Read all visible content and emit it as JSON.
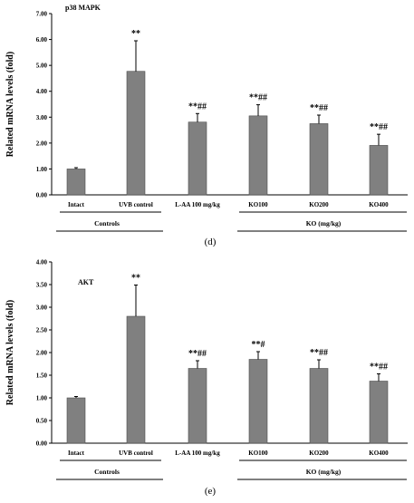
{
  "chart_data": [
    {
      "type": "bar",
      "title": "p38 MAPK",
      "ylabel": "Related mRNA levels (fold)",
      "ylim": [
        0,
        7
      ],
      "yticks": [
        "0.00",
        "1.00",
        "2.00",
        "3.00",
        "4.00",
        "5.00",
        "6.00",
        "7.00"
      ],
      "categories": [
        "Intact",
        "UVB control",
        "L-AA 100 mg/kg",
        "KO100",
        "KO200",
        "KO400"
      ],
      "values": [
        1.0,
        4.77,
        2.81,
        3.05,
        2.75,
        1.91
      ],
      "errors": [
        0.05,
        1.18,
        0.33,
        0.43,
        0.33,
        0.43
      ],
      "significance": [
        "",
        "**",
        "**##",
        "**##",
        "**##",
        "**##"
      ],
      "groups": [
        {
          "label": "Controls",
          "categories": [
            "Intact",
            "UVB control"
          ]
        },
        {
          "label": "KO (mg/kg)",
          "categories": [
            "KO100",
            "KO200",
            "KO400"
          ]
        }
      ],
      "panel_label": "(d)",
      "bar_color": "#808080"
    },
    {
      "type": "bar",
      "title": "AKT",
      "ylabel": "Related mRNA levels (fold)",
      "ylim": [
        0,
        4
      ],
      "yticks": [
        "0.00",
        "0.50",
        "1.00",
        "1.50",
        "2.00",
        "2.50",
        "3.00",
        "3.50",
        "4.00"
      ],
      "categories": [
        "Intact",
        "UVB control",
        "L-AA 100 mg/kg",
        "KO100",
        "KO200",
        "KO400"
      ],
      "values": [
        1.0,
        2.8,
        1.65,
        1.85,
        1.65,
        1.37
      ],
      "errors": [
        0.03,
        0.69,
        0.17,
        0.17,
        0.19,
        0.16
      ],
      "significance": [
        "",
        "**",
        "**##",
        "**#",
        "**##",
        "**##"
      ],
      "groups": [
        {
          "label": "Controls",
          "categories": [
            "Intact",
            "UVB control"
          ]
        },
        {
          "label": "KO (mg/kg)",
          "categories": [
            "KO100",
            "KO200",
            "KO400"
          ]
        }
      ],
      "panel_label": "(e)",
      "bar_color": "#808080"
    }
  ]
}
